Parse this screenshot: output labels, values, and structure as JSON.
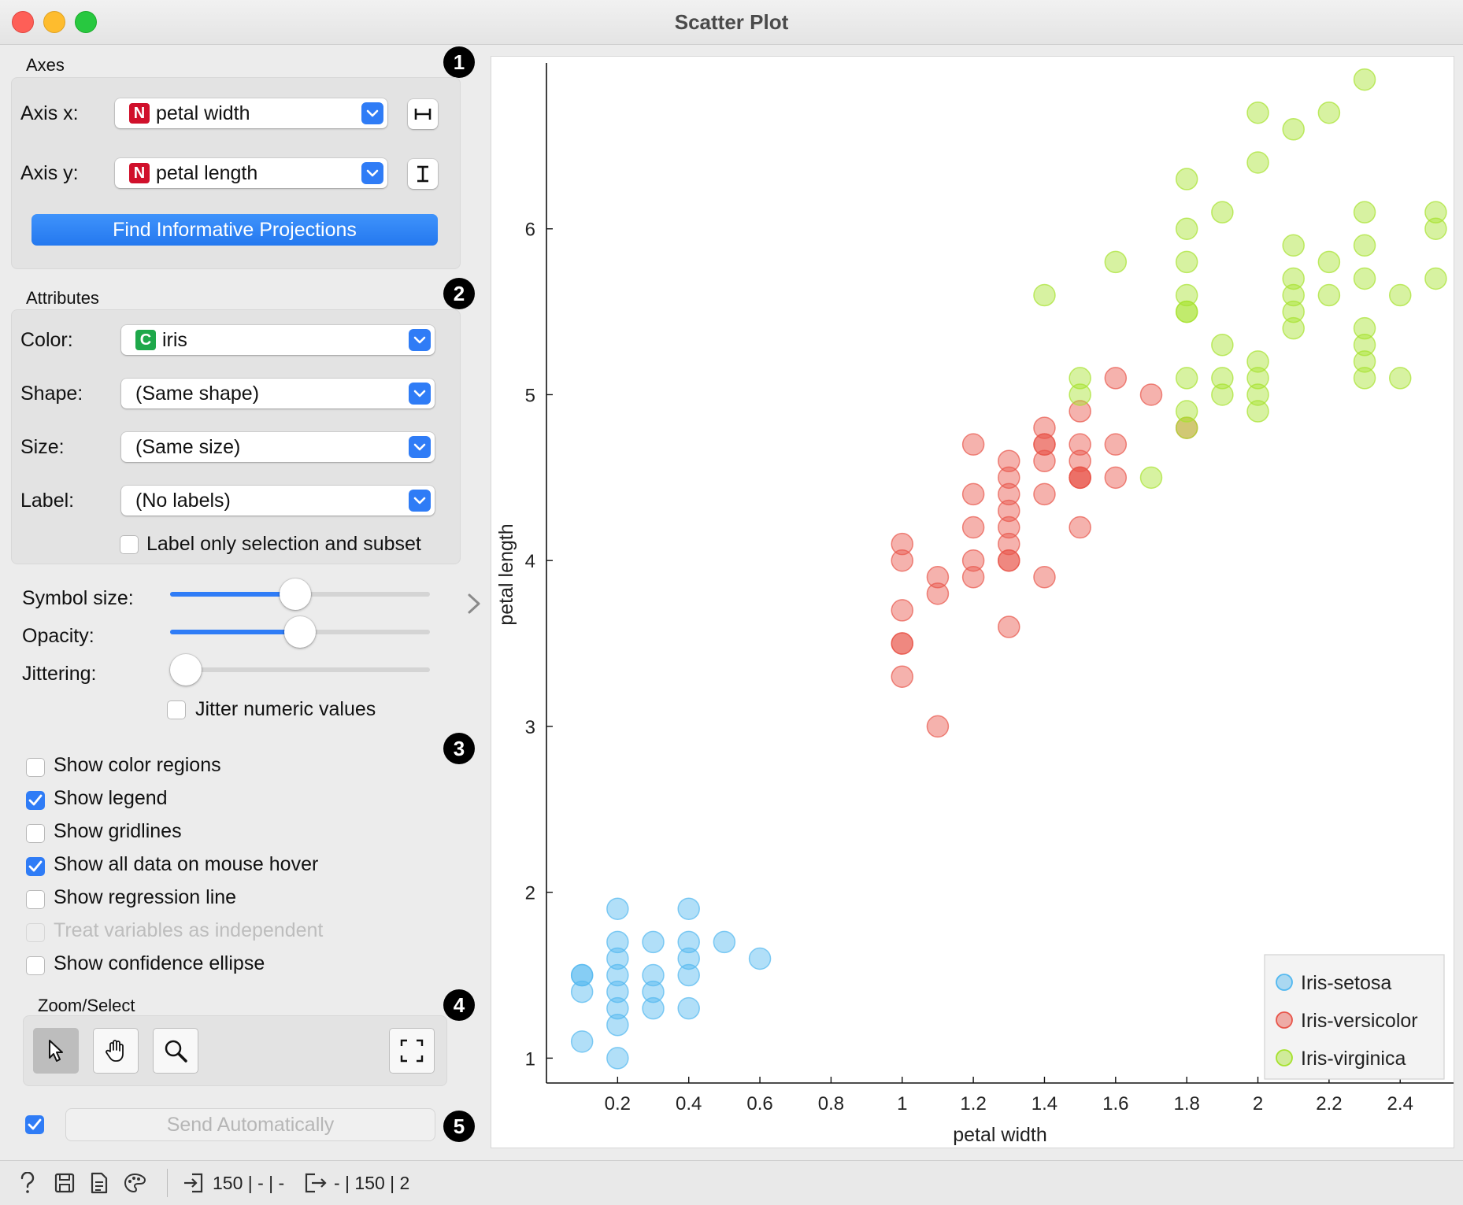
{
  "window": {
    "title": "Scatter Plot"
  },
  "markers": [
    "1",
    "2",
    "3",
    "4",
    "5"
  ],
  "axes": {
    "title": "Axes",
    "x_label": "Axis x:",
    "x_value": "petal width",
    "x_type": "N",
    "y_label": "Axis y:",
    "y_value": "petal length",
    "y_type": "N",
    "find_button": "Find Informative Projections"
  },
  "attributes": {
    "title": "Attributes",
    "color_label": "Color:",
    "color_value": "iris",
    "color_type": "C",
    "shape_label": "Shape:",
    "shape_value": "(Same shape)",
    "size_label": "Size:",
    "size_value": "(Same size)",
    "label_label": "Label:",
    "label_value": "(No labels)",
    "label_only": {
      "label": "Label only selection and subset",
      "checked": false
    }
  },
  "sliders": {
    "symbol_size": {
      "label": "Symbol size:",
      "value": 0.48
    },
    "opacity": {
      "label": "Opacity:",
      "value": 0.5
    },
    "jittering": {
      "label": "Jittering:",
      "value": 0.0
    },
    "jitter_numeric": {
      "label": "Jitter numeric values",
      "checked": false
    }
  },
  "options": [
    {
      "label": "Show color regions",
      "checked": false,
      "disabled": false
    },
    {
      "label": "Show legend",
      "checked": true,
      "disabled": false
    },
    {
      "label": "Show gridlines",
      "checked": false,
      "disabled": false
    },
    {
      "label": "Show all data on mouse hover",
      "checked": true,
      "disabled": false
    },
    {
      "label": "Show regression line",
      "checked": false,
      "disabled": false
    },
    {
      "label": "Treat variables as independent",
      "checked": false,
      "disabled": true
    },
    {
      "label": "Show confidence ellipse",
      "checked": false,
      "disabled": false
    }
  ],
  "zoom": {
    "title": "Zoom/Select",
    "tools": [
      "pointer-icon",
      "hand-icon",
      "zoom-icon",
      "fit-icon"
    ],
    "active": "pointer-icon"
  },
  "send": {
    "label": "Send Automatically",
    "checked": true
  },
  "status": {
    "input_summary": "150 | - | -",
    "output_summary": "- | 150 | 2"
  },
  "colors": {
    "accent": "#2f7cf6",
    "Iris-setosa": "#52b8f0",
    "Iris-versicolor": "#e8554a",
    "Iris-virginica": "#a6e22e"
  },
  "chart_data": {
    "type": "scatter",
    "xlabel": "petal width",
    "ylabel": "petal length",
    "xlim": [
      0,
      2.55
    ],
    "ylim": [
      0.85,
      7.0
    ],
    "xticks": [
      "0.2",
      "0.4",
      "0.6",
      "0.8",
      "1",
      "1.2",
      "1.4",
      "1.6",
      "1.8",
      "2",
      "2.2",
      "2.4"
    ],
    "yticks": [
      "1",
      "2",
      "3",
      "4",
      "5",
      "6"
    ],
    "legend_position": "bottom-right",
    "grid": false,
    "series": [
      {
        "name": "Iris-setosa",
        "x": [
          0.1,
          0.1,
          0.1,
          0.1,
          0.2,
          0.2,
          0.2,
          0.2,
          0.2,
          0.2,
          0.2,
          0.2,
          0.3,
          0.3,
          0.3,
          0.3,
          0.4,
          0.4,
          0.4,
          0.4,
          0.4,
          0.5,
          0.6
        ],
        "y": [
          1.1,
          1.4,
          1.5,
          1.5,
          1.0,
          1.2,
          1.3,
          1.4,
          1.5,
          1.6,
          1.7,
          1.9,
          1.3,
          1.4,
          1.5,
          1.7,
          1.3,
          1.5,
          1.6,
          1.7,
          1.9,
          1.7,
          1.6
        ]
      },
      {
        "name": "Iris-versicolor",
        "x": [
          1.0,
          1.0,
          1.0,
          1.0,
          1.0,
          1.0,
          1.1,
          1.1,
          1.1,
          1.2,
          1.2,
          1.2,
          1.2,
          1.2,
          1.3,
          1.3,
          1.3,
          1.3,
          1.3,
          1.3,
          1.3,
          1.3,
          1.3,
          1.4,
          1.4,
          1.4,
          1.4,
          1.4,
          1.4,
          1.5,
          1.5,
          1.5,
          1.5,
          1.5,
          1.5,
          1.5,
          1.6,
          1.6,
          1.6,
          1.7,
          1.8
        ],
        "y": [
          3.3,
          3.5,
          3.7,
          4.0,
          4.1,
          3.5,
          3.0,
          3.8,
          3.9,
          3.9,
          4.0,
          4.2,
          4.4,
          4.7,
          3.6,
          4.0,
          4.1,
          4.2,
          4.3,
          4.4,
          4.5,
          4.6,
          4.0,
          3.9,
          4.4,
          4.6,
          4.7,
          4.8,
          4.7,
          4.2,
          4.5,
          4.6,
          4.7,
          4.9,
          4.5,
          4.5,
          4.5,
          4.7,
          5.1,
          5.0,
          4.8
        ]
      },
      {
        "name": "Iris-virginica",
        "x": [
          1.4,
          1.5,
          1.5,
          1.6,
          1.7,
          1.8,
          1.8,
          1.8,
          1.8,
          1.8,
          1.8,
          1.8,
          1.8,
          1.8,
          1.9,
          1.9,
          1.9,
          1.9,
          2.0,
          2.0,
          2.0,
          2.0,
          2.0,
          2.0,
          2.1,
          2.1,
          2.1,
          2.1,
          2.1,
          2.1,
          2.2,
          2.2,
          2.2,
          2.3,
          2.3,
          2.3,
          2.3,
          2.3,
          2.3,
          2.3,
          2.3,
          2.4,
          2.4,
          2.5,
          2.5,
          2.5
        ],
        "y": [
          5.6,
          5.0,
          5.1,
          5.8,
          4.5,
          4.8,
          4.9,
          5.1,
          5.5,
          5.6,
          5.8,
          6.0,
          6.3,
          5.5,
          5.0,
          5.1,
          5.3,
          6.1,
          4.9,
          5.0,
          5.1,
          5.2,
          6.4,
          6.7,
          5.4,
          5.5,
          5.6,
          5.7,
          5.9,
          6.6,
          5.6,
          5.8,
          6.7,
          5.1,
          5.2,
          5.3,
          5.4,
          5.7,
          5.9,
          6.1,
          6.9,
          5.1,
          5.6,
          5.7,
          6.0,
          6.1
        ]
      }
    ]
  }
}
